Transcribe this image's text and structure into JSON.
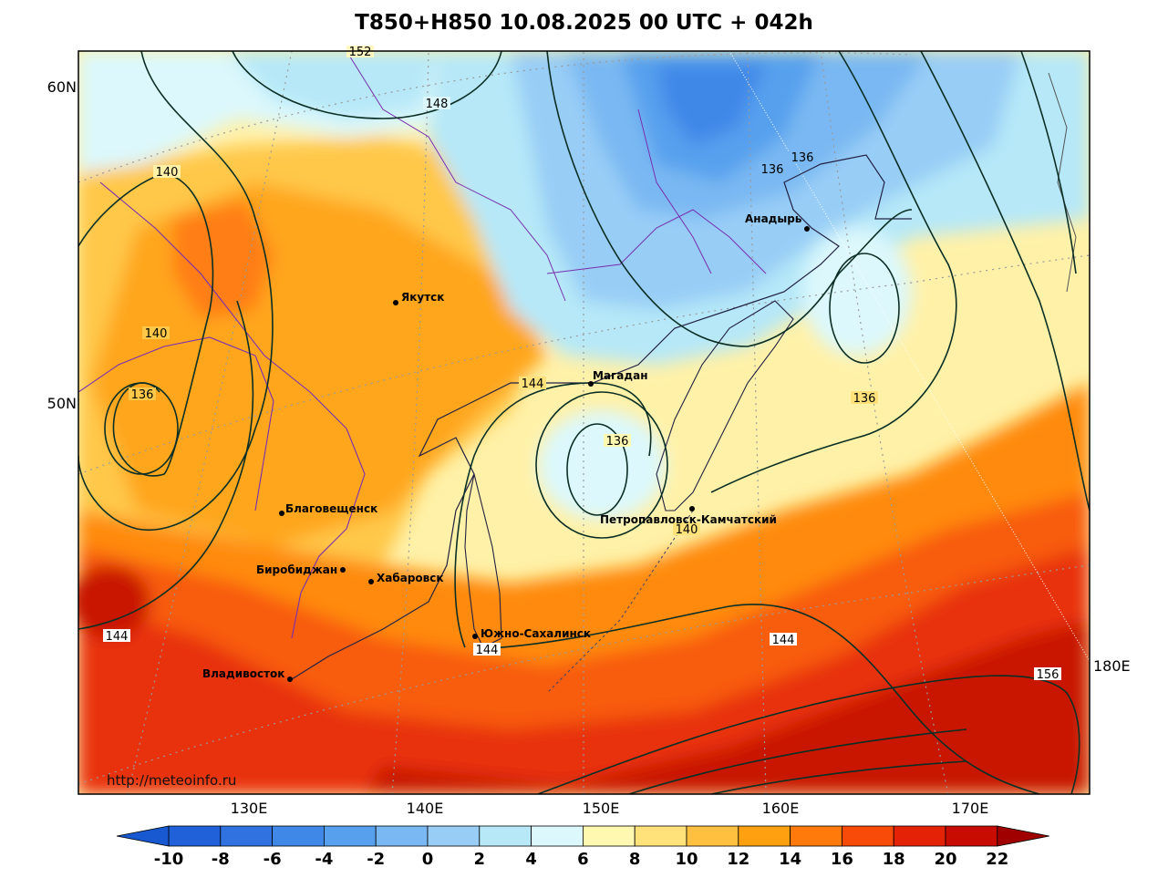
{
  "title": "T850+H850 10.08.2025 00 UTC + 042h",
  "credit": "http://meteoinfo.ru",
  "lat_labels": [
    "60N",
    "50N"
  ],
  "lon_labels": [
    "130E",
    "140E",
    "150E",
    "160E",
    "170E",
    "180E"
  ],
  "cities": [
    {
      "name": "Якутск"
    },
    {
      "name": "Магадан"
    },
    {
      "name": "Анадырь"
    },
    {
      "name": "Благовещенск"
    },
    {
      "name": "Биробиджан"
    },
    {
      "name": "Хабаровск"
    },
    {
      "name": "Петропавловск-Камчатский"
    },
    {
      "name": "Южно-Сахалинск"
    },
    {
      "name": "Владивосток"
    }
  ],
  "contour_labels": [
    "152",
    "148",
    "140",
    "140",
    "136",
    "136",
    "136",
    "136",
    "144",
    "136",
    "140",
    "144",
    "144",
    "144",
    "156"
  ],
  "colorbar": {
    "ticks": [
      "-10",
      "-8",
      "-6",
      "-4",
      "-2",
      "0",
      "2",
      "4",
      "6",
      "8",
      "10",
      "12",
      "14",
      "16",
      "18",
      "20",
      "22"
    ],
    "colors": [
      "#2060d8",
      "#2f72e0",
      "#3f88e8",
      "#56a0ee",
      "#79b8f2",
      "#98cdf6",
      "#b6e8f8",
      "#dcf8fc",
      "#fff8b0",
      "#ffe27a",
      "#ffc040",
      "#ffa010",
      "#ff7a0a",
      "#f84a08",
      "#e42205",
      "#c80c02",
      "#a00000",
      "#e8e8e8"
    ],
    "under_color": "#1858d0",
    "over_color": "#a00000"
  }
}
